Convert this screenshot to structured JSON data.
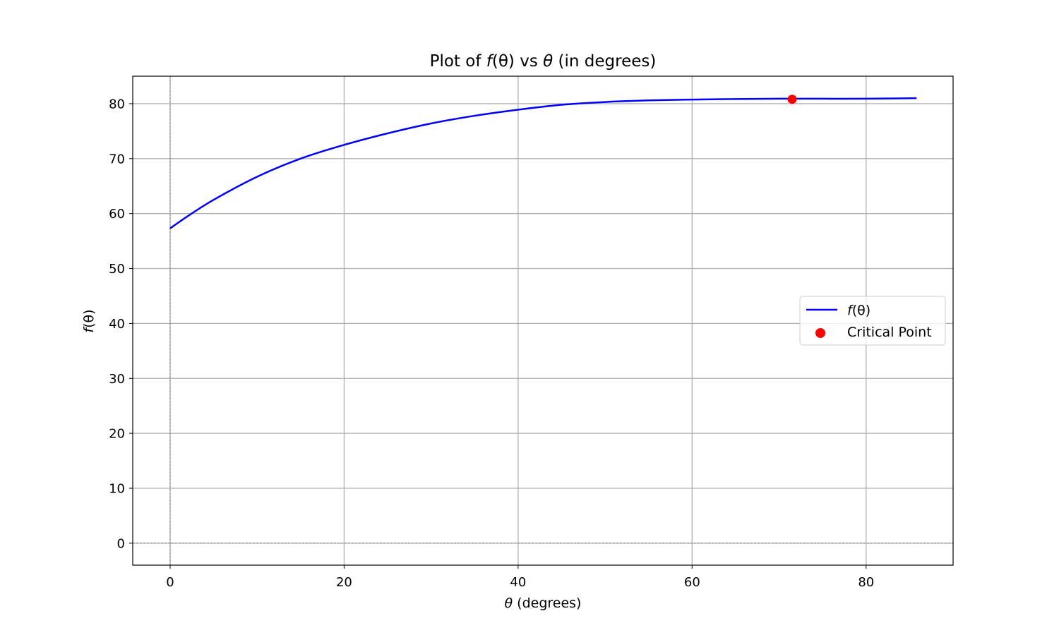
{
  "chart_data": {
    "type": "line",
    "title": {
      "prefix": "Plot of ",
      "f": "f",
      "arg": "(θ)",
      "middle": " vs ",
      "theta": "θ",
      "suffix": " (in degrees)"
    },
    "xlabel": {
      "theta": "θ",
      "suffix": " (degrees)"
    },
    "ylabel": {
      "f": "f",
      "arg": "(θ)"
    },
    "xlim": [
      -4.3,
      90.0
    ],
    "ylim": [
      -4.0,
      85.0
    ],
    "xticks": [
      0,
      20,
      40,
      60,
      80
    ],
    "xtick_labels": [
      "0",
      "20",
      "40",
      "60",
      "80"
    ],
    "yticks": [
      0,
      10,
      20,
      30,
      40,
      50,
      60,
      70,
      80
    ],
    "ytick_labels": [
      "0",
      "10",
      "20",
      "30",
      "40",
      "50",
      "60",
      "70",
      "80"
    ],
    "grid": true,
    "reference_lines": {
      "x": 0,
      "y": 0
    },
    "legend_placement": "center-right",
    "series": [
      {
        "name": "f(θ)",
        "legend_f": "f",
        "legend_arg": "(θ)",
        "kind": "line",
        "color": "#0000ff",
        "x": [
          0,
          2,
          5,
          10,
          15,
          20,
          25,
          30,
          35,
          40,
          45,
          50,
          55,
          60,
          65,
          70,
          75,
          80,
          85.8
        ],
        "y": [
          57.3,
          59.5,
          62.5,
          66.7,
          70.0,
          72.5,
          74.6,
          76.4,
          77.8,
          78.9,
          79.8,
          80.3,
          80.6,
          80.75,
          80.85,
          80.9,
          80.9,
          80.9,
          81.0
        ]
      },
      {
        "name": "Critical Point",
        "kind": "scatter",
        "color": "#ff0000",
        "x": [
          71.5
        ],
        "y": [
          80.8
        ]
      }
    ]
  }
}
